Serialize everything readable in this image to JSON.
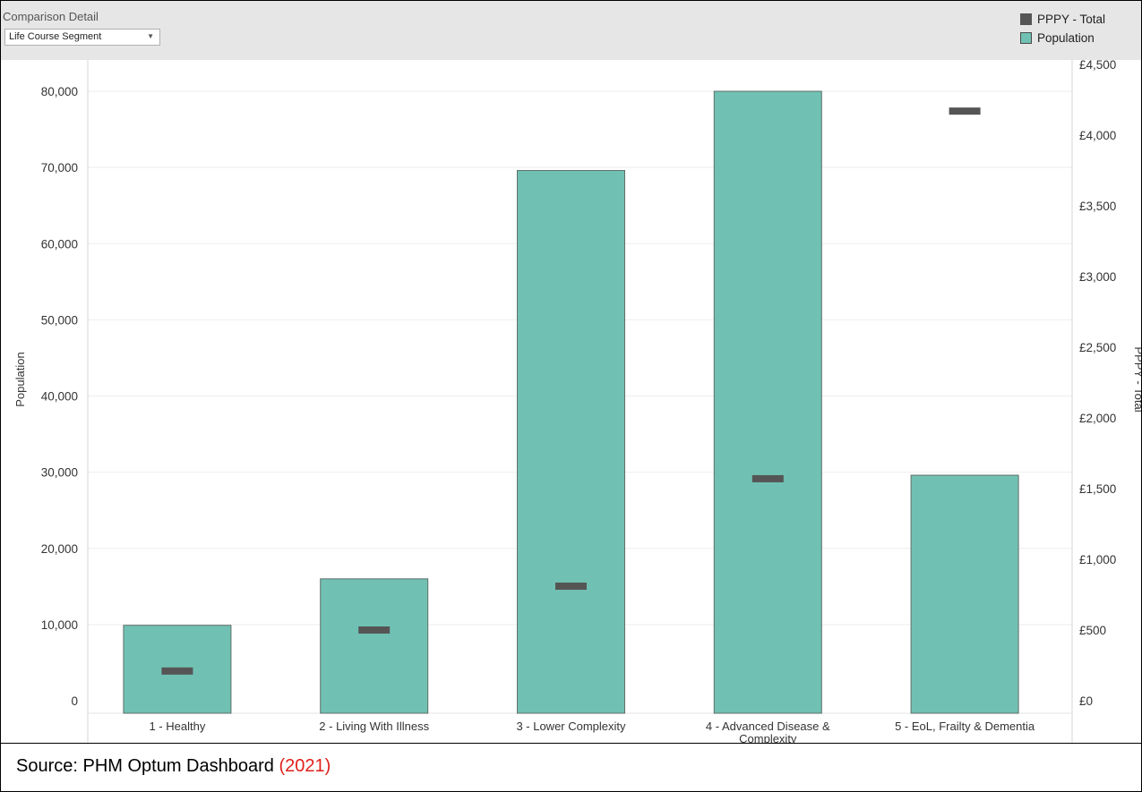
{
  "header": {
    "comparison_label": "Comparison Detail",
    "dropdown_value": "Life Course Segment"
  },
  "legend": {
    "items": [
      {
        "label": "PPPY - Total",
        "color": "#555555"
      },
      {
        "label": "Population",
        "color": "#70c1b3"
      }
    ]
  },
  "chart_data": {
    "type": "bar",
    "categories": [
      [
        "1 - Healthy"
      ],
      [
        "2 - Living With Illness"
      ],
      [
        "3 - Lower Complexity"
      ],
      [
        "4 - Advanced Disease &",
        "Complexity"
      ],
      [
        "5 - EoL, Frailty & Dementia"
      ]
    ],
    "series": [
      {
        "name": "Population",
        "axis": "left",
        "mark": "bar",
        "color": "#70c1b3",
        "values": [
          9900,
          16000,
          69600,
          80000,
          29600
        ]
      },
      {
        "name": "PPPY - Total",
        "axis": "right",
        "mark": "dash",
        "color": "#555555",
        "values": [
          210,
          500,
          810,
          1570,
          4170
        ]
      }
    ],
    "y_left": {
      "label": "Population",
      "range": [
        0,
        82800
      ],
      "ticks": [
        0,
        10000,
        20000,
        30000,
        40000,
        50000,
        60000,
        70000,
        80000
      ],
      "tick_labels": [
        "0",
        "10,000",
        "20,000",
        "30,000",
        "40,000",
        "50,000",
        "60,000",
        "70,000",
        "80,000"
      ]
    },
    "y_right": {
      "label": "PPPY - Total",
      "range": [
        0,
        4500
      ],
      "ticks": [
        0,
        500,
        1000,
        1500,
        2000,
        2500,
        3000,
        3500,
        4000,
        4500
      ],
      "tick_labels": [
        "£0",
        "£500",
        "£1,000",
        "£1,500",
        "£2,000",
        "£2,500",
        "£3,000",
        "£3,500",
        "£4,000",
        "£4,500"
      ]
    },
    "grid": true,
    "legend_position": "top-right"
  },
  "source": {
    "prefix": "Source: PHM Optum Dashboard ",
    "year": "(2021)"
  }
}
